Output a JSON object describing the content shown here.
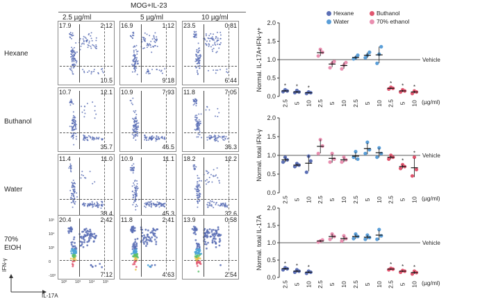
{
  "figure": {
    "condition_title": "MOG+IL-23",
    "concentrations": [
      "2.5 µg/ml",
      "5 µg/ml",
      "10 µg/ml"
    ],
    "rows": [
      {
        "label": "Hexane",
        "panels": [
          {
            "tl": "17.9",
            "tr": "2.12",
            "br": "10.5"
          },
          {
            "tl": "16.9",
            "tr": "1.12",
            "br": "9.18"
          },
          {
            "tl": "23.5",
            "tr": "0.81",
            "br": "6.44"
          }
        ]
      },
      {
        "label": "Buthanol",
        "panels": [
          {
            "tl": "10.7",
            "tr": "12.1",
            "br": "35.7"
          },
          {
            "tl": "10.9",
            "tr": "7.93",
            "br": "46.5"
          },
          {
            "tl": "11.8",
            "tr": "7.05",
            "br": "36.3"
          }
        ]
      },
      {
        "label": "Water",
        "panels": [
          {
            "tl": "11.4",
            "tr": "11.0",
            "br": "38.4"
          },
          {
            "tl": "10.9",
            "tr": "11.1",
            "br": "45.3"
          },
          {
            "tl": "18.2",
            "tr": "12.2",
            "br": "32.6"
          }
        ]
      },
      {
        "label": "70%\nEtOH",
        "panels": [
          {
            "tl": "20.4",
            "tr": "2.42",
            "br": "7.12"
          },
          {
            "tl": "11.8",
            "tr": "2.41",
            "br": "4.63"
          },
          {
            "tl": "13.9",
            "tr": "0.58",
            "br": "2.54"
          }
        ]
      }
    ],
    "x_axis_label": "IL-17A",
    "y_axis_label": "IFN-γ",
    "flow_ticks": [
      "10⁰",
      "10³",
      "10⁴",
      "10⁵"
    ],
    "flow_y_ticks": [
      "10⁵",
      "10⁴",
      "10³",
      "0",
      "-10³"
    ]
  },
  "legend": [
    {
      "name": "Hexane",
      "color": "#5b6fb5"
    },
    {
      "name": "Buthanol",
      "color": "#e0566f"
    },
    {
      "name": "Water",
      "color": "#5a9ed8"
    },
    {
      "name": "70% ethanol",
      "color": "#e98fb0"
    }
  ],
  "chart_data": [
    {
      "type": "scatter",
      "title": "",
      "ylabel": "Normal. IL-17A+IFN-γ+",
      "xlabel": "(µg/ml)",
      "ylim": [
        0,
        2.0
      ],
      "yticks": [
        "0.0",
        "0.5",
        "1.0",
        "1.5",
        "2.0"
      ],
      "reference_line": {
        "value": 1.0,
        "label": "Vehicle"
      },
      "categories": [
        "2.5",
        "5",
        "10",
        "2.5",
        "5",
        "10",
        "2.5",
        "5",
        "10",
        "2.5",
        "5",
        "10"
      ],
      "group_colors": [
        "#5b6fb5",
        "#5b6fb5",
        "#5b6fb5",
        "#e98fb0",
        "#e98fb0",
        "#e98fb0",
        "#5a9ed8",
        "#5a9ed8",
        "#5a9ed8",
        "#e0566f",
        "#e0566f",
        "#e0566f"
      ],
      "points": [
        [
          0.13,
          0.18,
          0.15
        ],
        [
          0.1,
          0.16,
          0.12
        ],
        [
          0.08,
          0.12,
          0.1
        ],
        [
          1.1,
          1.28,
          1.2
        ],
        [
          0.78,
          0.9,
          0.95
        ],
        [
          0.75,
          0.85,
          0.92
        ],
        [
          1.02,
          1.05,
          1.12
        ],
        [
          1.05,
          1.12,
          1.2
        ],
        [
          0.9,
          1.15,
          1.35
        ],
        [
          0.2,
          0.25,
          0.22
        ],
        [
          0.12,
          0.18,
          0.15
        ],
        [
          0.08,
          0.15,
          0.12
        ]
      ],
      "means": [
        0.15,
        0.12,
        0.1,
        1.19,
        0.88,
        0.84,
        1.06,
        1.12,
        1.13,
        0.22,
        0.15,
        0.12
      ],
      "significant": [
        true,
        true,
        true,
        false,
        false,
        false,
        false,
        false,
        false,
        true,
        true,
        true
      ]
    },
    {
      "type": "scatter",
      "title": "",
      "ylabel": "Normal. total IFN-γ",
      "xlabel": "(µg/ml)",
      "ylim": [
        0,
        2.0
      ],
      "yticks": [
        "0.0",
        "0.5",
        "1.0",
        "1.5",
        "2.0"
      ],
      "reference_line": {
        "value": 1.0,
        "label": "Vehicle"
      },
      "categories": [
        "2.5",
        "5",
        "10",
        "2.5",
        "5",
        "10",
        "2.5",
        "5",
        "10",
        "2.5",
        "5",
        "10"
      ],
      "group_colors": [
        "#5b6fb5",
        "#5b6fb5",
        "#5b6fb5",
        "#e98fb0",
        "#e98fb0",
        "#e98fb0",
        "#5a9ed8",
        "#5a9ed8",
        "#5a9ed8",
        "#e0566f",
        "#e0566f",
        "#e0566f"
      ],
      "points": [
        [
          0.82,
          0.95,
          0.88
        ],
        [
          0.7,
          0.78,
          0.74
        ],
        [
          0.55,
          0.98,
          0.85
        ],
        [
          1.05,
          1.42,
          1.25
        ],
        [
          0.82,
          1.05,
          0.9
        ],
        [
          0.82,
          0.95,
          0.88
        ],
        [
          0.95,
          1.1,
          0.9
        ],
        [
          1.05,
          1.35,
          1.15
        ],
        [
          0.95,
          1.2,
          1.05
        ],
        [
          0.9,
          1.0,
          0.95
        ],
        [
          0.65,
          0.75,
          0.7
        ],
        [
          0.45,
          0.95,
          0.62
        ]
      ],
      "means": [
        0.88,
        0.74,
        0.79,
        1.24,
        0.92,
        0.88,
        0.98,
        1.18,
        1.07,
        0.95,
        0.7,
        0.67
      ],
      "significant": [
        false,
        false,
        false,
        false,
        false,
        false,
        false,
        false,
        false,
        false,
        true,
        true
      ]
    },
    {
      "type": "scatter",
      "title": "",
      "ylabel": "Normal. total IL-17A",
      "xlabel": "(µg/ml)",
      "ylim": [
        0,
        2.0
      ],
      "yticks": [
        "0.0",
        "0.5",
        "1.0",
        "1.5",
        "2.0"
      ],
      "reference_line": {
        "value": 1.0,
        "label": "Vehicle"
      },
      "categories": [
        "2.5",
        "5",
        "10",
        "2.5",
        "5",
        "10",
        "2.5",
        "5",
        "10",
        "2.5",
        "5",
        "10"
      ],
      "group_colors": [
        "#5b6fb5",
        "#5b6fb5",
        "#5b6fb5",
        "#e98fb0",
        "#e98fb0",
        "#e98fb0",
        "#5a9ed8",
        "#5a9ed8",
        "#5a9ed8",
        "#e0566f",
        "#e0566f",
        "#e0566f"
      ],
      "points": [
        [
          0.22,
          0.28,
          0.25
        ],
        [
          0.15,
          0.22,
          0.18
        ],
        [
          0.12,
          0.18,
          0.15
        ],
        [
          1.02,
          1.05,
          1.08
        ],
        [
          1.1,
          1.25,
          1.18
        ],
        [
          1.05,
          1.2,
          1.12
        ],
        [
          1.12,
          1.25,
          1.18
        ],
        [
          1.1,
          1.22,
          1.15
        ],
        [
          1.1,
          1.38,
          1.2
        ],
        [
          0.22,
          0.26,
          0.24
        ],
        [
          0.15,
          0.2,
          0.18
        ],
        [
          0.1,
          0.18,
          0.14
        ]
      ],
      "means": [
        0.25,
        0.18,
        0.15,
        1.05,
        1.18,
        1.12,
        1.18,
        1.16,
        1.22,
        0.24,
        0.18,
        0.14
      ],
      "significant": [
        true,
        true,
        true,
        false,
        false,
        false,
        false,
        false,
        false,
        true,
        true,
        true
      ]
    }
  ]
}
